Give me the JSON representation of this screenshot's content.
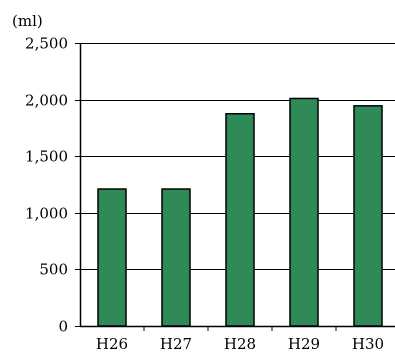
{
  "chart_data": {
    "type": "bar",
    "unit": "(ml)",
    "categories": [
      "H26",
      "H27",
      "H28",
      "H29",
      "H30"
    ],
    "values": [
      1210,
      1210,
      1875,
      2010,
      1945
    ],
    "ylim": [
      0,
      2500
    ],
    "yticks": [
      0,
      500,
      1000,
      1500,
      2000,
      2500
    ],
    "ytick_labels": [
      "0",
      "500",
      "1,000",
      "1,500",
      "2,000",
      "2,500"
    ],
    "grid": true,
    "legend": "none",
    "colors": {
      "bar_fill": "#2e8b57",
      "bar_stroke": "#000000",
      "axis": "#000000",
      "grid": "#000000"
    }
  }
}
